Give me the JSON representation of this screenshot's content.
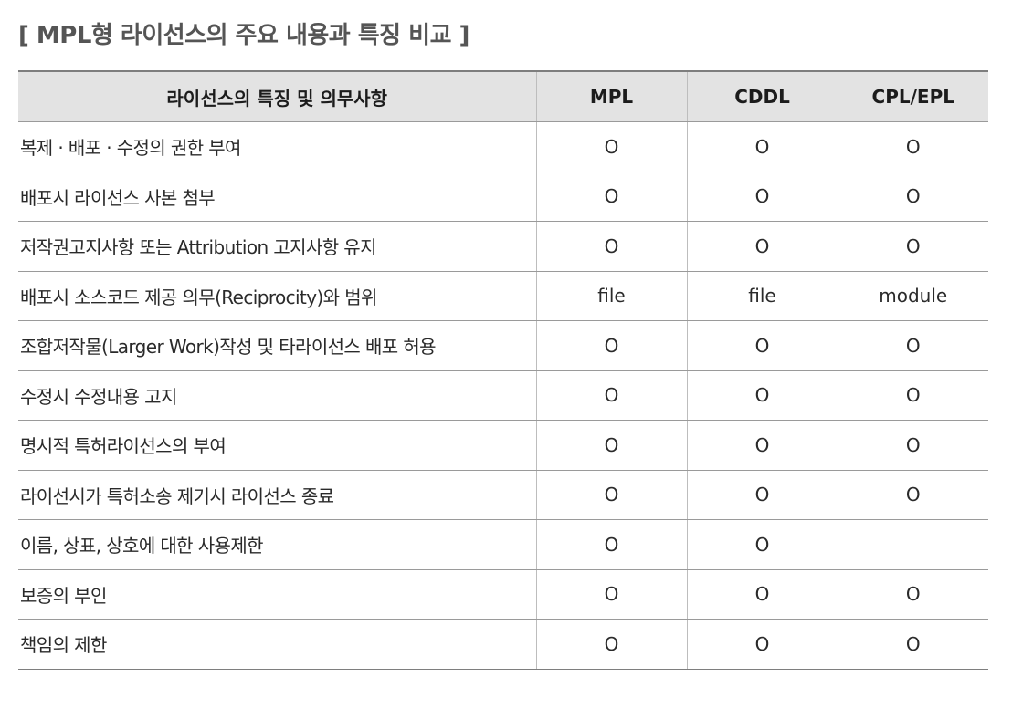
{
  "title": "[ MPL형 라이선스의 주요 내용과 특징 비교 ]",
  "table": {
    "headers": [
      "라이선스의 특징 및 의무사항",
      "MPL",
      "CDDL",
      "CPL/EPL"
    ],
    "rows": [
      {
        "feature": "복제 · 배포 · 수정의 권한 부여",
        "mpl": "O",
        "cddl": "O",
        "cpl_epl": "O"
      },
      {
        "feature": "배포시 라이선스 사본 첨부",
        "mpl": "O",
        "cddl": "O",
        "cpl_epl": "O"
      },
      {
        "feature": "저작권고지사항 또는 Attribution 고지사항 유지",
        "mpl": "O",
        "cddl": "O",
        "cpl_epl": "O"
      },
      {
        "feature": "배포시 소스코드 제공 의무(Reciprocity)와 범위",
        "mpl": "file",
        "cddl": "file",
        "cpl_epl": "module"
      },
      {
        "feature": "조합저작물(Larger Work)작성 및 타라이선스 배포 허용",
        "mpl": "O",
        "cddl": "O",
        "cpl_epl": "O"
      },
      {
        "feature": "수정시 수정내용 고지",
        "mpl": "O",
        "cddl": "O",
        "cpl_epl": "O"
      },
      {
        "feature": "명시적 특허라이선스의 부여",
        "mpl": "O",
        "cddl": "O",
        "cpl_epl": "O"
      },
      {
        "feature": "라이선시가 특허소송 제기시 라이선스 종료",
        "mpl": "O",
        "cddl": "O",
        "cpl_epl": "O"
      },
      {
        "feature": "이름, 상표, 상호에 대한 사용제한",
        "mpl": "O",
        "cddl": "O",
        "cpl_epl": ""
      },
      {
        "feature": "보증의 부인",
        "mpl": "O",
        "cddl": "O",
        "cpl_epl": "O"
      },
      {
        "feature": "책임의 제한",
        "mpl": "O",
        "cddl": "O",
        "cpl_epl": "O"
      }
    ]
  }
}
